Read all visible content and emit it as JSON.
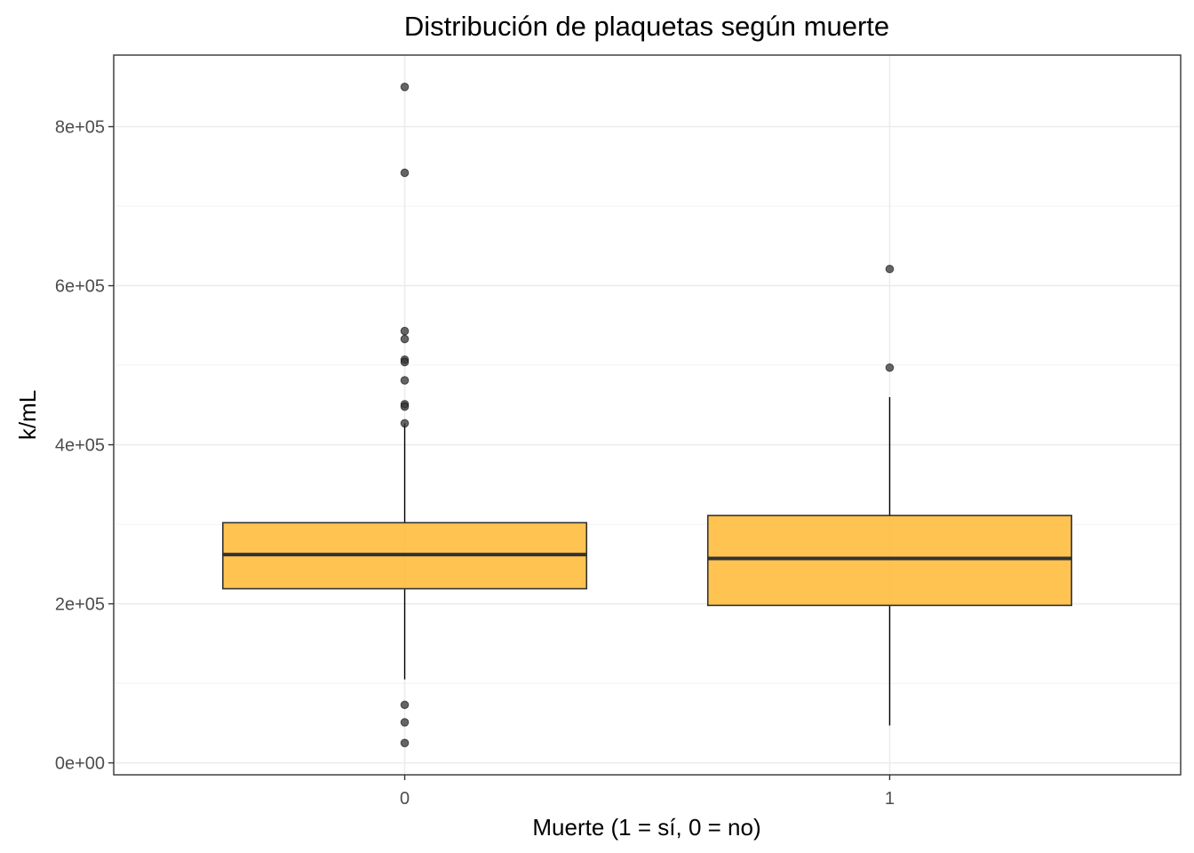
{
  "chart_data": {
    "type": "boxplot",
    "title": "Distribución de plaquetas según muerte",
    "xlabel": "Muerte (1 = sí, 0 = no)",
    "ylabel": "k/mL",
    "categories": [
      "0",
      "1"
    ],
    "y_ticks": [
      0,
      200000,
      400000,
      600000,
      800000
    ],
    "y_tick_labels": [
      "0e+00",
      "2e+05",
      "4e+05",
      "6e+05",
      "8e+05"
    ],
    "ylim": [
      -15000,
      890000
    ],
    "grid": true,
    "box_fill": "#FFB833",
    "box_fill_opacity": 0.85,
    "box_stroke": "#333333",
    "outlier_color": "#333333",
    "boxes": [
      {
        "category": "0",
        "lower_whisker": 105000,
        "q1": 219000,
        "median": 262000,
        "q3": 302000,
        "upper_whisker": 427000,
        "outliers": [
          850000,
          742000,
          543000,
          533000,
          507000,
          504000,
          481000,
          451000,
          448000,
          427000,
          73000,
          51000,
          25000
        ]
      },
      {
        "category": "1",
        "lower_whisker": 47000,
        "q1": 198000,
        "median": 257000,
        "q3": 311000,
        "upper_whisker": 460000,
        "outliers": [
          621000,
          497000
        ]
      }
    ]
  }
}
